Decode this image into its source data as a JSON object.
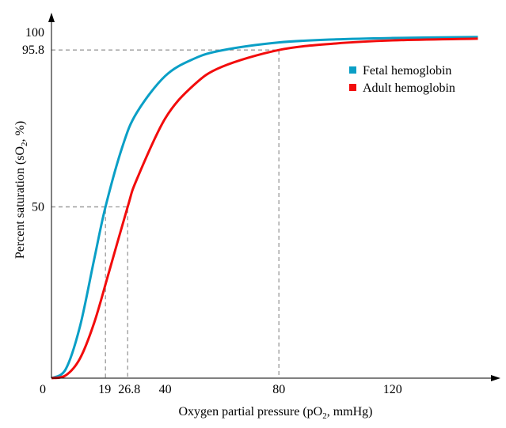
{
  "chart_data": {
    "type": "line",
    "title": "",
    "xlabel": "Oxygen partial pressure (pO",
    "xlabel_sub": "2",
    "xlabel_tail": ", mmHg)",
    "ylabel": "Percent saturation (sO",
    "ylabel_sub": "2",
    "ylabel_tail": ", %)",
    "xlim": [
      0,
      150
    ],
    "ylim": [
      0,
      100
    ],
    "x_ticks": [
      {
        "v": 0,
        "label": "0"
      },
      {
        "v": 19,
        "label": "19"
      },
      {
        "v": 26.8,
        "label": "26.8"
      },
      {
        "v": 40,
        "label": "40"
      },
      {
        "v": 80,
        "label": "80"
      },
      {
        "v": 120,
        "label": "120"
      }
    ],
    "y_ticks": [
      {
        "v": 0,
        "label": "0"
      },
      {
        "v": 50,
        "label": "50"
      },
      {
        "v": 95.8,
        "label": "95.8"
      },
      {
        "v": 100,
        "label": "100"
      }
    ],
    "grid": false,
    "legend_position": "top-right",
    "reference_lines": [
      {
        "x": 19,
        "y": 50
      },
      {
        "x": 26.8,
        "y": 50
      },
      {
        "x": 80,
        "y": 95.8
      }
    ],
    "series": [
      {
        "name": "Fetal hemoglobin",
        "color": "#0a9fc6",
        "x": [
          0,
          5,
          10,
          15,
          19,
          25,
          30,
          40,
          50,
          60,
          80,
          100,
          120,
          150
        ],
        "y": [
          0,
          2.6,
          15.0,
          34.6,
          50,
          67.7,
          77.5,
          88.2,
          93.2,
          95.7,
          98.0,
          98.9,
          99.3,
          99.6
        ]
      },
      {
        "name": "Adult hemoglobin",
        "color": "#f20c0c",
        "x": [
          0,
          5,
          10,
          15,
          20,
          26.8,
          30,
          40,
          50,
          60,
          80,
          100,
          120,
          150
        ],
        "y": [
          0,
          0.8,
          5.7,
          16.1,
          30.3,
          50,
          58.0,
          75.8,
          85.5,
          90.9,
          95.8,
          97.7,
          98.6,
          99.1
        ]
      }
    ]
  }
}
